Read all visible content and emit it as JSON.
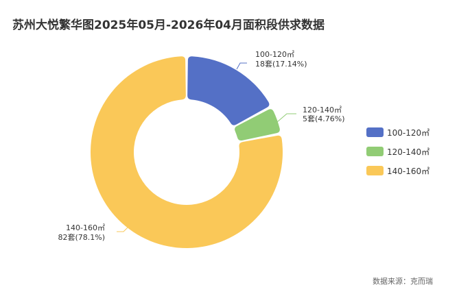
{
  "title": "苏州大悦繁华图2025年05月-2026年04月面积段供求数据",
  "source_note": "数据来源：克而瑞",
  "chart_data": {
    "type": "pie",
    "donut": true,
    "legend_position": "right",
    "unit": "套",
    "slices": [
      {
        "name": "100-120㎡",
        "value": 18,
        "percent": 17.14,
        "color": "#5470c6",
        "label_name": "100-120㎡",
        "label_value": "18套(17.14%)"
      },
      {
        "name": "120-140㎡",
        "value": 5,
        "percent": 4.76,
        "color": "#91cc75",
        "label_name": "120-140㎡",
        "label_value": "5套(4.76%)"
      },
      {
        "name": "140-160㎡",
        "value": 82,
        "percent": 78.1,
        "color": "#fac858",
        "label_name": "140-160㎡",
        "label_value": "82套(78.1%)"
      }
    ]
  }
}
